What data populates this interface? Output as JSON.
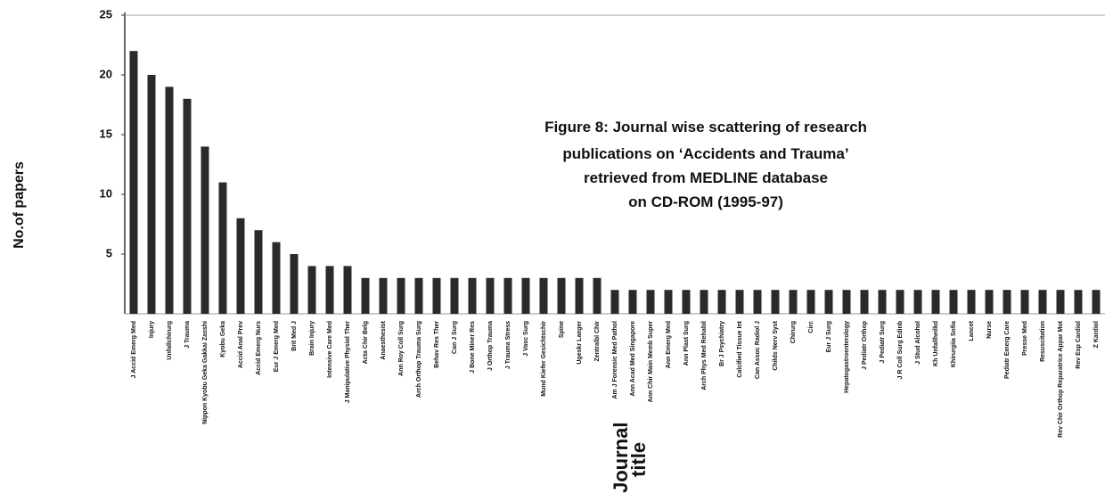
{
  "chart_data": {
    "type": "bar",
    "title": [
      "Figure 8: Journal wise scattering of research",
      "publications on ‘Accidents and Trauma’",
      "retrieved from MEDLINE database",
      "on CD-ROM (1995-97)"
    ],
    "ylabel": "No.of papers",
    "xlabel": [
      "Journal",
      "title"
    ],
    "categories": [
      "J Accid Emerg Med",
      "Injury",
      "Unfallchirurg",
      "J Trauma",
      "Nippon Kyobu Geka Gakkai Zasshi",
      "Kyobu Geka",
      "Accid Anal Prev",
      "Accid Emerg Nurs",
      "Eur J Emerg Med",
      "Brit Med J",
      "Brain Injury",
      "Intensive Care Med",
      "J Manipulative Physiol Ther",
      "Acta Chir Belg",
      "Anaesthesist",
      "Ann Roy Coll Surg",
      "Arch Orthop Trauma Surg",
      "Behav Res Ther",
      "Can J Surg",
      "J Bone Miner Res",
      "J Orthop Trauma",
      "J Trauma Stress",
      "J Vasc Surg",
      "Mund Kiefer Gesichtschir",
      "Spine",
      "Ugeskr Laeger",
      "Zentralbl Chir",
      "Am J Forensic Med Pathol",
      "Ann Acad Med Singapore",
      "Ann Chir Main Memb Super",
      "Ann Emerg Med",
      "Ann Plast Surg",
      "Arch Phys Med Rehabil",
      "Br J Psychiatry",
      "Calcified Tissue Int",
      "Can Assoc Radiol J",
      "Childs Nerv Syst",
      "Chirurg",
      "Circ",
      "Eur J Surg",
      "Hepatogastroenterology",
      "J Pediatr Orthop",
      "J Pediatr Surg",
      "J R Coll Surg Edinb",
      "J Stud Alcohol",
      "Kh Unfallheilkd",
      "Khirurgiia Sofia",
      "Lancet",
      "Nurse",
      "Pediatr Emerg Care",
      "Presse Med",
      "Resuscitation",
      "Rev Chir Orthop Reparatrice Appar Mot",
      "Rev Esp Cardiol",
      "Z Kardiol"
    ],
    "values": [
      22,
      20,
      19,
      18,
      14,
      11,
      8,
      7,
      6,
      5,
      4,
      4,
      4,
      3,
      3,
      3,
      3,
      3,
      3,
      3,
      3,
      3,
      3,
      3,
      3,
      3,
      3,
      2,
      2,
      2,
      2,
      2,
      2,
      2,
      2,
      2,
      2,
      2,
      2,
      2,
      2,
      2,
      2,
      2,
      2,
      2,
      2,
      2,
      2,
      2,
      2,
      2,
      2,
      2,
      2
    ],
    "color": "#2a2a2a",
    "ylim": [
      0,
      25
    ],
    "yticks": [
      5,
      10,
      15,
      20,
      25
    ]
  }
}
